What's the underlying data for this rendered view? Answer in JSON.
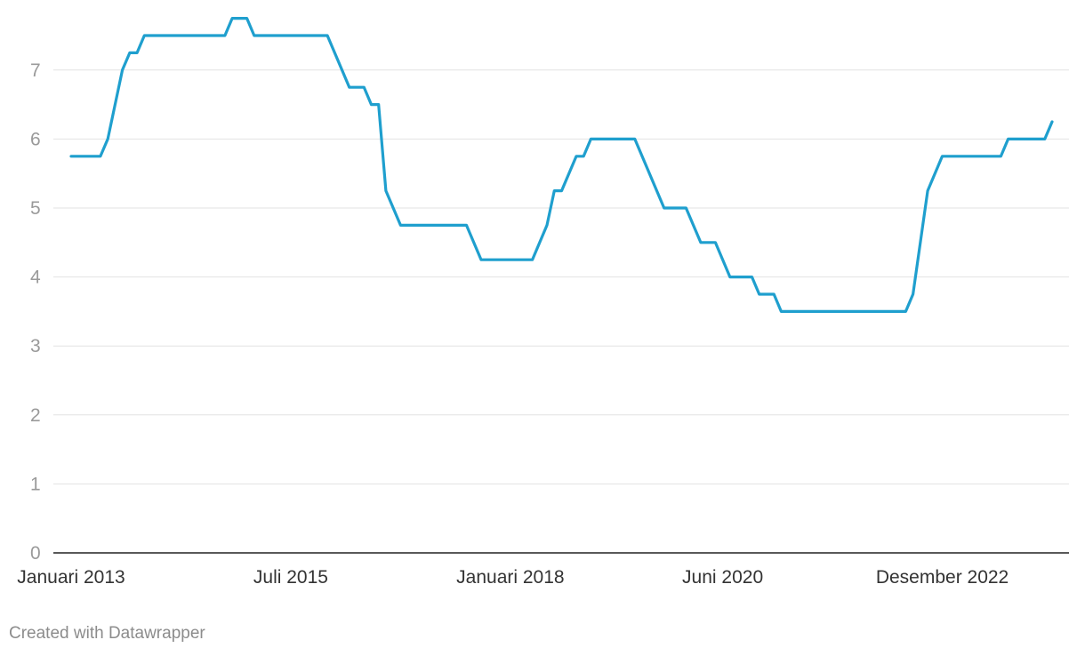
{
  "chart_data": {
    "type": "line",
    "title": "",
    "xlabel": "",
    "ylabel": "",
    "ylim": [
      0,
      7.75
    ],
    "y_ticks": [
      "0",
      "1",
      "2",
      "3",
      "4",
      "5",
      "6",
      "7"
    ],
    "x_tick_labels": [
      {
        "date": "2013-01",
        "label": "Januari 2013"
      },
      {
        "date": "2015-07",
        "label": "Juli 2015"
      },
      {
        "date": "2018-01",
        "label": "Januari 2018"
      },
      {
        "date": "2020-06",
        "label": "Juni 2020"
      },
      {
        "date": "2022-12",
        "label": "Desember 2022"
      }
    ],
    "grid": true,
    "line_color": "#1f9fce",
    "series": [
      {
        "values": [
          [
            "2013-01",
            5.75
          ],
          [
            "2013-05",
            5.75
          ],
          [
            "2013-06",
            6.0
          ],
          [
            "2013-08",
            7.0
          ],
          [
            "2013-09",
            7.25
          ],
          [
            "2013-10",
            7.25
          ],
          [
            "2013-11",
            7.5
          ],
          [
            "2014-10",
            7.5
          ],
          [
            "2014-11",
            7.75
          ],
          [
            "2015-01",
            7.75
          ],
          [
            "2015-02",
            7.5
          ],
          [
            "2015-12",
            7.5
          ],
          [
            "2016-03",
            6.75
          ],
          [
            "2016-05",
            6.75
          ],
          [
            "2016-06",
            6.5
          ],
          [
            "2016-07",
            6.5
          ],
          [
            "2016-08",
            5.25
          ],
          [
            "2016-10",
            4.75
          ],
          [
            "2017-07",
            4.75
          ],
          [
            "2017-09",
            4.25
          ],
          [
            "2018-04",
            4.25
          ],
          [
            "2018-06",
            4.75
          ],
          [
            "2018-07",
            5.25
          ],
          [
            "2018-08",
            5.25
          ],
          [
            "2018-10",
            5.75
          ],
          [
            "2018-11",
            5.75
          ],
          [
            "2018-12",
            6.0
          ],
          [
            "2019-06",
            6.0
          ],
          [
            "2019-10",
            5.0
          ],
          [
            "2020-01",
            5.0
          ],
          [
            "2020-03",
            4.5
          ],
          [
            "2020-05",
            4.5
          ],
          [
            "2020-07",
            4.0
          ],
          [
            "2020-10",
            4.0
          ],
          [
            "2020-11",
            3.75
          ],
          [
            "2021-01",
            3.75
          ],
          [
            "2021-02",
            3.5
          ],
          [
            "2022-07",
            3.5
          ],
          [
            "2022-08",
            3.75
          ],
          [
            "2022-10",
            5.25
          ],
          [
            "2022-12",
            5.75
          ],
          [
            "2023-08",
            5.75
          ],
          [
            "2023-09",
            6.0
          ],
          [
            "2024-02",
            6.0
          ],
          [
            "2024-03",
            6.25
          ]
        ]
      }
    ]
  },
  "footer": {
    "credit": "Created with Datawrapper"
  }
}
